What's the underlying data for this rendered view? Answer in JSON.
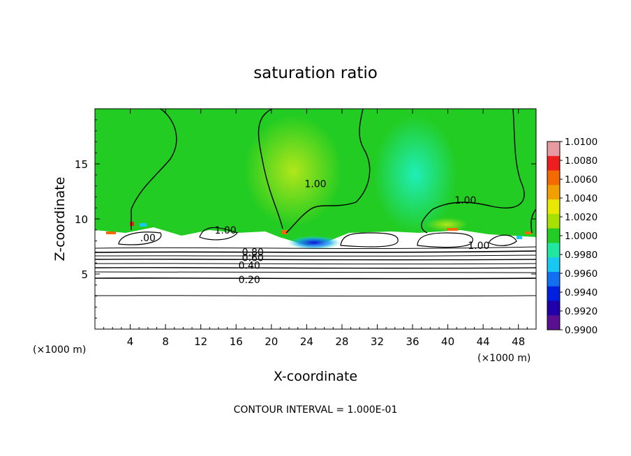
{
  "chart_data": {
    "type": "heatmap",
    "title": "saturation ratio",
    "xlabel": "X-coordinate",
    "ylabel": "Z-coordinate",
    "x_unit_left": "(×1000 m)",
    "x_unit_right": "(×1000 m)",
    "footer": "CONTOUR INTERVAL = 1.000E-01",
    "xlim": [
      0,
      50
    ],
    "ylim": [
      0,
      20
    ],
    "x_ticks": [
      4,
      8,
      12,
      16,
      20,
      24,
      28,
      32,
      36,
      40,
      44,
      48
    ],
    "y_ticks": [
      5,
      10,
      15
    ],
    "colorbar": {
      "range": [
        0.99,
        1.01
      ],
      "labels": [
        "1.0100",
        "1.0080",
        "1.0060",
        "1.0040",
        "1.0020",
        "1.0000",
        "0.9980",
        "0.9960",
        "0.9940",
        "0.9920",
        "0.9900"
      ],
      "colors": [
        "#e89aa2",
        "#ee1e1e",
        "#f26a00",
        "#f0a000",
        "#e8e800",
        "#a8e000",
        "#22cc22",
        "#20e8a0",
        "#18c8f0",
        "#1070f0",
        "#0020e0",
        "#2000a8",
        "#5a1090"
      ]
    },
    "contour_labels": [
      {
        "text": "1.00",
        "x": 25.0,
        "z": 13.2
      },
      {
        "text": "1.00",
        "x": 42.0,
        "z": 11.7
      },
      {
        "text": "1.00",
        "x": 14.8,
        "z": 9.0
      },
      {
        "text": "1.00",
        "x": 43.5,
        "z": 7.6
      },
      {
        "text": ".00",
        "x": 6.0,
        "z": 8.3
      },
      {
        "text": "0.80",
        "x": 17.9,
        "z": 7.0
      },
      {
        "text": "0.60",
        "x": 17.9,
        "z": 6.5
      },
      {
        "text": "0.40",
        "x": 17.5,
        "z": 5.8
      },
      {
        "text": "0.20",
        "x": 17.5,
        "z": 4.5
      }
    ]
  }
}
